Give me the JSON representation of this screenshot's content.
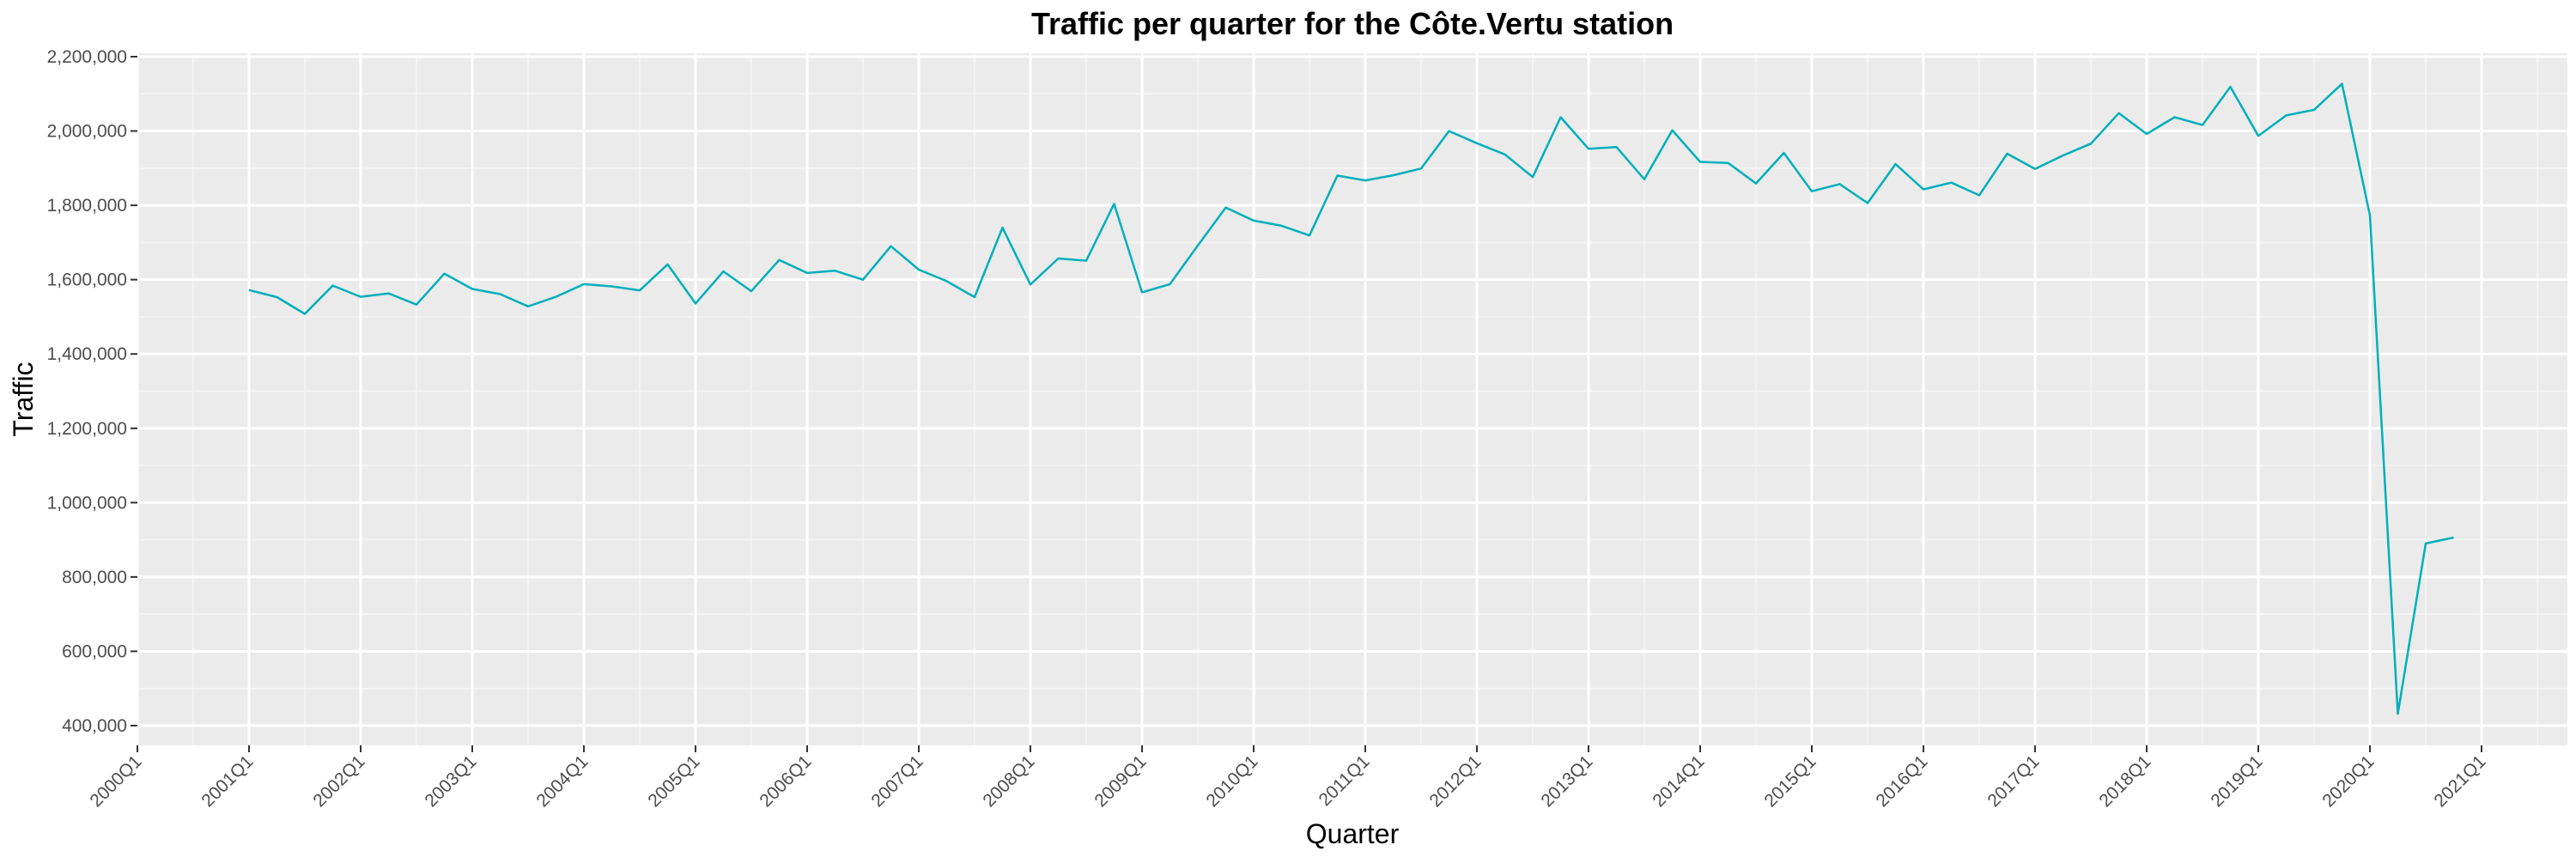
{
  "chart_data": {
    "type": "line",
    "title": "Traffic per quarter for the Côte.Vertu station",
    "xlabel": "Quarter",
    "ylabel": "Traffic",
    "x_tick_labels": [
      "2000Q1",
      "2001Q1",
      "2002Q1",
      "2003Q1",
      "2004Q1",
      "2005Q1",
      "2006Q1",
      "2007Q1",
      "2008Q1",
      "2009Q1",
      "2010Q1",
      "2011Q1",
      "2012Q1",
      "2013Q1",
      "2014Q1",
      "2015Q1",
      "2016Q1",
      "2017Q1",
      "2018Q1",
      "2019Q1",
      "2020Q1",
      "2021Q1"
    ],
    "y_tick_labels": [
      "400,000",
      "600,000",
      "800,000",
      "1,000,000",
      "1,200,000",
      "1,400,000",
      "1,600,000",
      "1,800,000",
      "2,000,000",
      "2,200,000"
    ],
    "y_ticks": [
      400000,
      600000,
      800000,
      1000000,
      1200000,
      1400000,
      1600000,
      1800000,
      2000000,
      2200000
    ],
    "xlim": [
      2000.0,
      2021.0
    ],
    "ylim": [
      350000,
      2200000
    ],
    "grid": true,
    "colors": {
      "series": "#00AFBB",
      "panel": "#EBEBEB",
      "grid": "#FFFFFF"
    },
    "series": [
      {
        "x": [
          2001.0,
          2001.25,
          2001.5,
          2001.75,
          2002.0,
          2002.25,
          2002.5,
          2002.75,
          2003.0,
          2003.25,
          2003.5,
          2003.75,
          2004.0,
          2004.25,
          2004.5,
          2004.75,
          2005.0,
          2005.25,
          2005.5,
          2005.75,
          2006.0,
          2006.25,
          2006.5,
          2006.75,
          2007.0,
          2007.25,
          2007.5,
          2007.75,
          2008.0,
          2008.25,
          2008.5,
          2008.75,
          2009.0,
          2009.25,
          2009.5,
          2009.75,
          2010.0,
          2010.25,
          2010.5,
          2010.75,
          2011.0,
          2011.25,
          2011.5,
          2011.75,
          2012.0,
          2012.25,
          2012.5,
          2012.75,
          2013.0,
          2013.25,
          2013.5,
          2013.75,
          2014.0,
          2014.25,
          2014.5,
          2014.75,
          2015.0,
          2015.25,
          2015.5,
          2015.75,
          2016.0,
          2016.25,
          2016.5,
          2016.75,
          2017.0,
          2017.25,
          2017.5,
          2017.75,
          2018.0,
          2018.25,
          2018.5,
          2018.75,
          2019.0,
          2019.25,
          2019.5,
          2019.75,
          2020.0,
          2020.25,
          2020.5,
          2020.75
        ],
        "y": [
          1572000,
          1553000,
          1508000,
          1584000,
          1554000,
          1563000,
          1533000,
          1616000,
          1575000,
          1561000,
          1528000,
          1554000,
          1588000,
          1582000,
          1571000,
          1641000,
          1536000,
          1622000,
          1569000,
          1653000,
          1618000,
          1624000,
          1600000,
          1690000,
          1627000,
          1596000,
          1553000,
          1740000,
          1587000,
          1657000,
          1651000,
          1804000,
          1566000,
          1588000,
          1692000,
          1794000,
          1759000,
          1745000,
          1719000,
          1880000,
          1867000,
          1881000,
          1899000,
          2000000,
          1967000,
          1937000,
          1876000,
          2037000,
          1952000,
          1957000,
          1870000,
          2002000,
          1917000,
          1914000,
          1859000,
          1941000,
          1838000,
          1857000,
          1806000,
          1911000,
          1843000,
          1861000,
          1827000,
          1939000,
          1898000,
          1934000,
          1966000,
          2048000,
          1992000,
          2037000,
          2016000,
          2119000,
          1987000,
          2042000,
          2057000,
          2127000,
          1773000,
          432000,
          890000,
          906000
        ]
      }
    ]
  }
}
